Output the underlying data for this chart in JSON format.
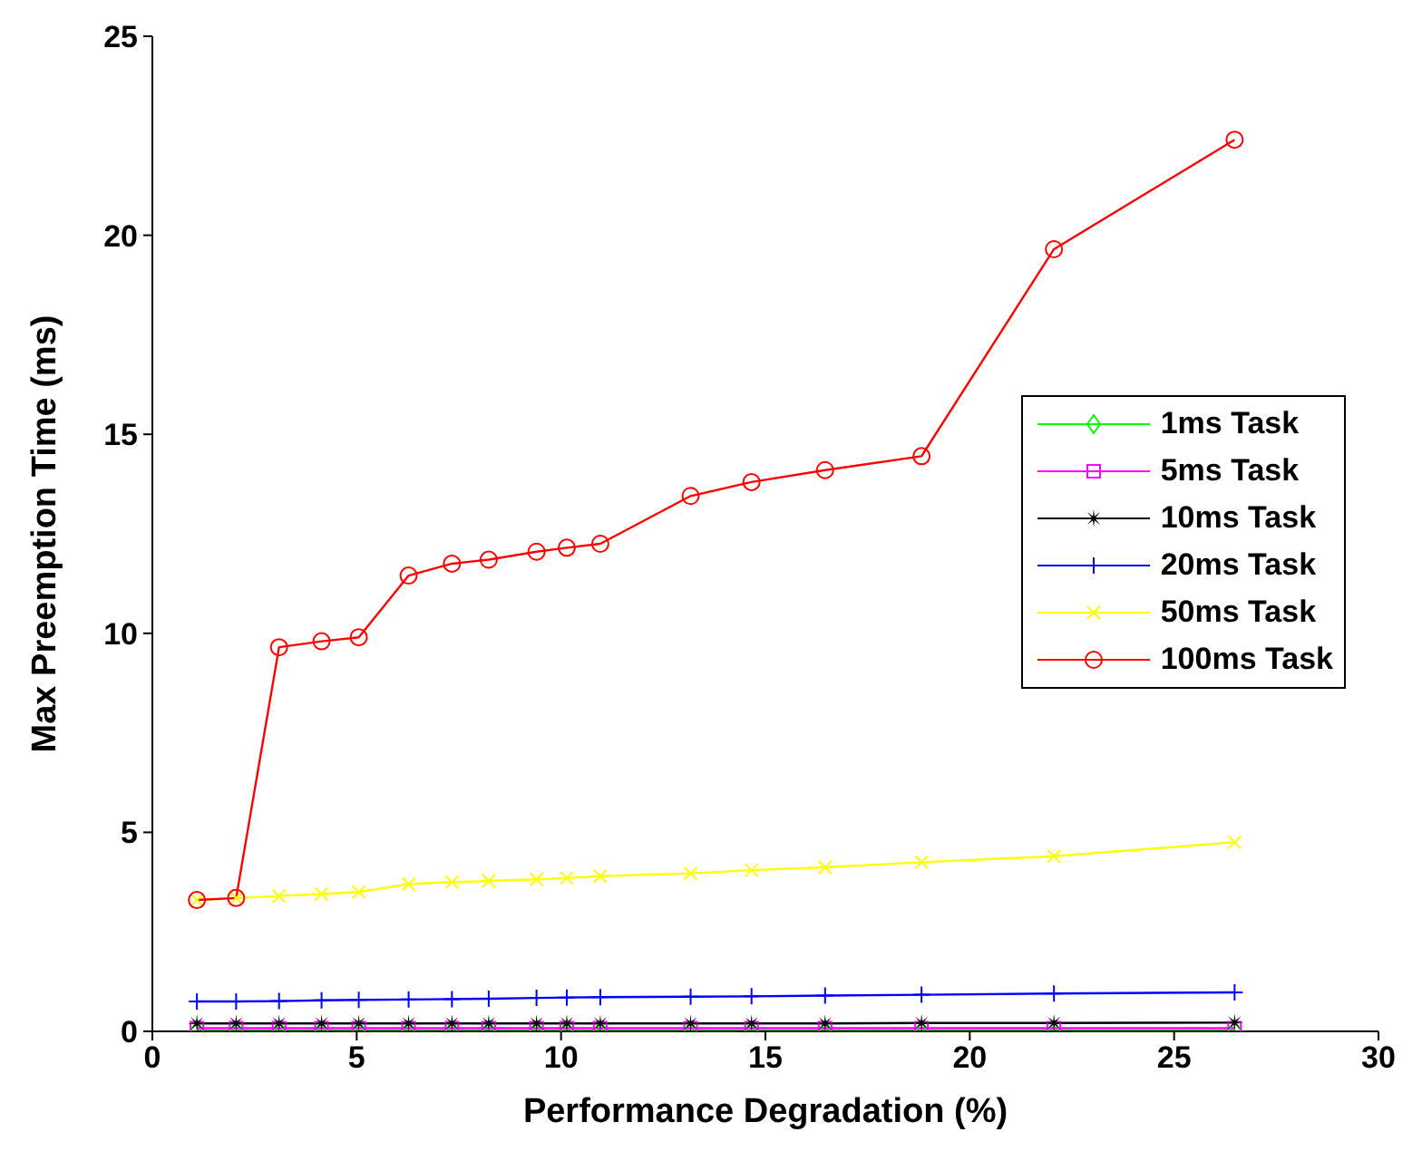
{
  "chart_data": {
    "type": "line",
    "xlabel": "Performance Degradation (%)",
    "ylabel": "Max Preemption Time (ms)",
    "x": [
      1.09,
      2.05,
      3.1,
      4.14,
      5.05,
      6.27,
      7.33,
      8.23,
      9.4,
      10.14,
      10.96,
      13.17,
      14.66,
      16.46,
      18.82,
      22.06,
      26.48
    ],
    "xlim": [
      0,
      30
    ],
    "xticks": [
      0,
      5,
      10,
      15,
      20,
      25,
      30
    ],
    "ylim": [
      0,
      25
    ],
    "yticks": [
      0,
      5,
      10,
      15,
      20,
      25
    ],
    "grid": false,
    "legend": "right",
    "series": [
      {
        "name": "1ms Task",
        "color": "#00ff00",
        "marker": "diamond",
        "values": [
          0.02,
          0.02,
          0.02,
          0.02,
          0.02,
          0.02,
          0.02,
          0.02,
          0.02,
          0.02,
          0.02,
          0.02,
          0.02,
          0.02,
          0.02,
          0.02,
          0.02
        ]
      },
      {
        "name": "5ms Task",
        "color": "#ff00ff",
        "marker": "square",
        "values": [
          0.08,
          0.08,
          0.08,
          0.08,
          0.08,
          0.08,
          0.08,
          0.08,
          0.08,
          0.08,
          0.08,
          0.08,
          0.08,
          0.08,
          0.08,
          0.08,
          0.08
        ]
      },
      {
        "name": "10ms Task",
        "color": "#000000",
        "marker": "star",
        "values": [
          0.2,
          0.2,
          0.2,
          0.2,
          0.2,
          0.2,
          0.2,
          0.2,
          0.2,
          0.2,
          0.2,
          0.2,
          0.2,
          0.2,
          0.21,
          0.21,
          0.22
        ]
      },
      {
        "name": "20ms Task",
        "color": "#0000ff",
        "marker": "plus",
        "values": [
          0.75,
          0.75,
          0.76,
          0.78,
          0.79,
          0.8,
          0.81,
          0.82,
          0.84,
          0.85,
          0.86,
          0.87,
          0.88,
          0.9,
          0.92,
          0.95,
          0.98
        ]
      },
      {
        "name": "50ms Task",
        "color": "#ffff00",
        "marker": "cross",
        "values": [
          3.3,
          3.35,
          3.4,
          3.45,
          3.5,
          3.7,
          3.75,
          3.78,
          3.82,
          3.85,
          3.9,
          3.97,
          4.05,
          4.12,
          4.25,
          4.4,
          4.75
        ]
      },
      {
        "name": "100ms Task",
        "color": "#ff0000",
        "marker": "circle",
        "values": [
          3.3,
          3.35,
          9.65,
          9.8,
          9.9,
          11.45,
          11.75,
          11.85,
          12.05,
          12.15,
          12.25,
          13.45,
          13.8,
          14.1,
          14.45,
          19.65,
          22.4
        ]
      }
    ]
  }
}
